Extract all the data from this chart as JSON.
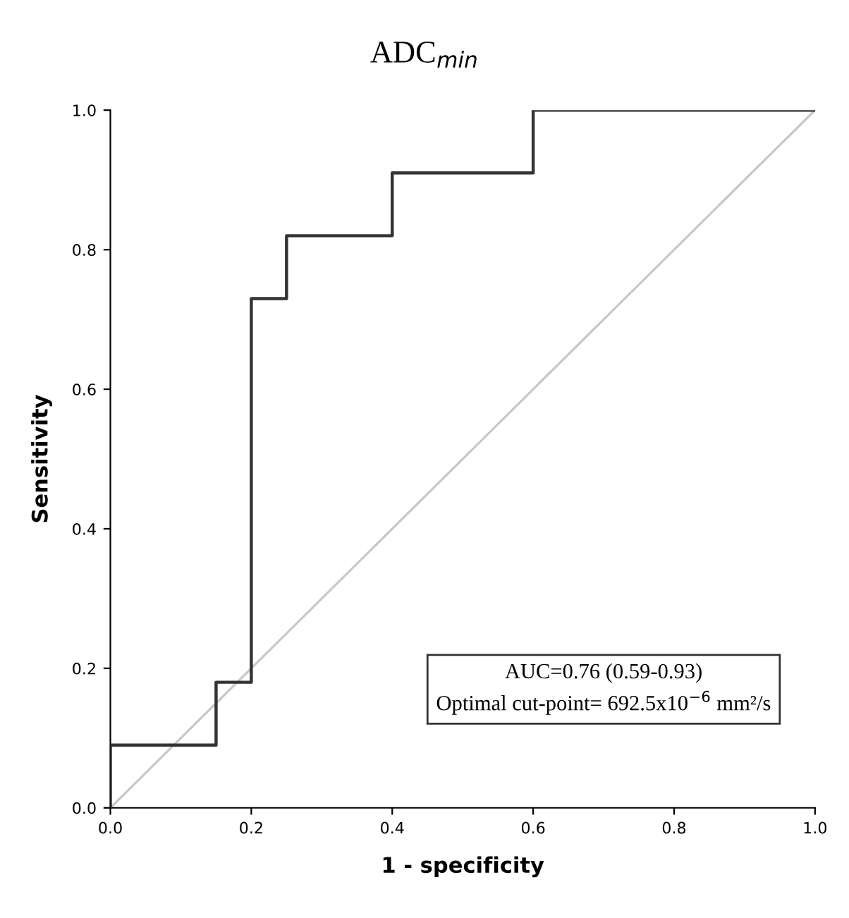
{
  "chart_data": {
    "type": "line",
    "title": "ADC$_{min}$",
    "xlabel": "1 - specificity",
    "ylabel": "Sensitivity",
    "series": [
      {
        "color": "#333333",
        "x": [
          0,
          0,
          0.15,
          0.15,
          0.2,
          0.2,
          0.25,
          0.25,
          0.4,
          0.4,
          0.6,
          0.6,
          1.0
        ],
        "values": [
          0,
          0.09,
          0.09,
          0.18,
          0.18,
          0.73,
          0.73,
          0.82,
          0.82,
          0.91,
          0.91,
          1.0,
          1.0
        ]
      },
      {
        "color": "#c8c8c8",
        "x": [
          0,
          1.0
        ],
        "values": [
          0,
          1.0
        ]
      }
    ],
    "xlim": [
      0,
      1.0
    ],
    "ylim": [
      0,
      1.0
    ],
    "xticks": [
      {
        "value": 0,
        "label": "0.0"
      },
      0.2,
      0.4,
      0.6,
      0.8,
      {
        "value": 1.0,
        "label": "1.0"
      }
    ],
    "yticks": [
      {
        "value": 0,
        "label": "0.0"
      },
      0.2,
      0.4,
      0.6,
      0.8,
      {
        "value": 1.0,
        "label": "1.0"
      }
    ],
    "grid": false,
    "line_style": "solid",
    "marker": "none",
    "annotations": [
      "AUC=0.76 (0.59-0.93)",
      "Optimal cut-point= 692.5x10$^{−6}$ mm²/s"
    ]
  }
}
